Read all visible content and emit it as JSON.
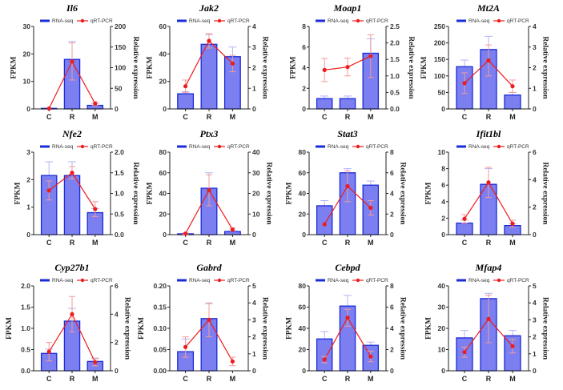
{
  "chart_data": [
    {
      "type": "bar+line",
      "title": "Il6",
      "categories": [
        "C",
        "R",
        "M"
      ],
      "ylabel": "FPKM",
      "y2label": "Relative expression",
      "ylim": [
        0,
        30
      ],
      "yticks": [
        0,
        10,
        20,
        30
      ],
      "y2lim": [
        0,
        200
      ],
      "y2ticks": [
        0,
        50,
        100,
        150,
        200
      ],
      "series": [
        {
          "name": "RNA-seq",
          "values": [
            0.2,
            18,
            1.3
          ],
          "errors": [
            0.1,
            6.5,
            0.7
          ]
        },
        {
          "name": "qRT-PCR",
          "values": [
            1,
            115,
            13
          ],
          "errors": [
            0,
            45,
            5
          ]
        }
      ]
    },
    {
      "type": "bar+line",
      "title": "Jak2",
      "categories": [
        "C",
        "R",
        "M"
      ],
      "ylabel": "FPKM",
      "y2label": "Relative expression",
      "ylim": [
        0,
        60
      ],
      "yticks": [
        0,
        20,
        40,
        60
      ],
      "y2lim": [
        0,
        4
      ],
      "y2ticks": [
        0,
        1,
        2,
        3,
        4
      ],
      "series": [
        {
          "name": "RNA-seq",
          "values": [
            11,
            47,
            38
          ],
          "errors": [
            1.5,
            7,
            7
          ]
        },
        {
          "name": "qRT-PCR",
          "values": [
            1.1,
            3.3,
            2.2
          ],
          "errors": [
            0.3,
            0.35,
            0.4
          ]
        }
      ]
    },
    {
      "type": "bar+line",
      "title": "Moap1",
      "categories": [
        "C",
        "R",
        "M"
      ],
      "ylabel": "FPKM",
      "y2label": "Relative expression",
      "ylim": [
        0,
        8
      ],
      "yticks": [
        0,
        2,
        4,
        6,
        8
      ],
      "y2lim": [
        0,
        2.5
      ],
      "y2ticks": [
        "0.0",
        "0.5",
        "1.0",
        "1.5",
        "2.0",
        "2.5"
      ],
      "series": [
        {
          "name": "RNA-seq",
          "values": [
            1,
            1,
            5.4
          ],
          "errors": [
            0.25,
            0.25,
            1.4
          ]
        },
        {
          "name": "qRT-PCR",
          "values": [
            1.18,
            1.27,
            1.6
          ],
          "errors": [
            0.35,
            0.27,
            0.65
          ]
        }
      ]
    },
    {
      "type": "bar+line",
      "title": "Mt2A",
      "categories": [
        "C",
        "R",
        "M"
      ],
      "ylabel": "FPKM",
      "y2label": "Relative expression",
      "ylim": [
        0,
        250
      ],
      "yticks": [
        0,
        50,
        100,
        150,
        200,
        250
      ],
      "y2lim": [
        0,
        4
      ],
      "y2ticks": [
        0,
        1,
        2,
        3,
        4
      ],
      "series": [
        {
          "name": "RNA-seq",
          "values": [
            128,
            180,
            42
          ],
          "errors": [
            20,
            40,
            8
          ]
        },
        {
          "name": "qRT-PCR",
          "values": [
            1.25,
            2.35,
            1.1
          ],
          "errors": [
            0.5,
            0.75,
            0.3
          ]
        }
      ]
    },
    {
      "type": "bar+line",
      "title": "Nfe2",
      "categories": [
        "C",
        "R",
        "M"
      ],
      "ylabel": "FPKM",
      "y2label": "Relative expression",
      "ylim": [
        0,
        3
      ],
      "yticks": [
        0,
        1,
        2,
        3
      ],
      "y2lim": [
        0,
        2
      ],
      "y2ticks": [
        "0.0",
        "0.5",
        "1.0",
        "1.5",
        "2.0"
      ],
      "series": [
        {
          "name": "RNA-seq",
          "values": [
            2.15,
            2.15,
            0.8
          ],
          "errors": [
            0.5,
            0.5,
            0.15
          ]
        },
        {
          "name": "qRT-PCR",
          "values": [
            1.07,
            1.5,
            0.62
          ],
          "errors": [
            0.23,
            0.15,
            0.18
          ]
        }
      ]
    },
    {
      "type": "bar+line",
      "title": "Ptx3",
      "categories": [
        "C",
        "R",
        "M"
      ],
      "ylabel": "FPKM",
      "y2label": "Relative expression",
      "ylim": [
        0,
        80
      ],
      "yticks": [
        0,
        20,
        40,
        60,
        80
      ],
      "y2lim": [
        0,
        40
      ],
      "y2ticks": [
        0,
        10,
        20,
        30,
        40
      ],
      "series": [
        {
          "name": "RNA-seq",
          "values": [
            0.8,
            45,
            3
          ],
          "errors": [
            0.5,
            15,
            1
          ]
        },
        {
          "name": "qRT-PCR",
          "values": [
            0.5,
            21.5,
            2.5
          ],
          "errors": [
            0.3,
            7.5,
            0.8
          ]
        }
      ]
    },
    {
      "type": "bar+line",
      "title": "Stat3",
      "categories": [
        "C",
        "R",
        "M"
      ],
      "ylabel": "FPKM",
      "y2label": "Relative expression",
      "ylim": [
        0,
        80
      ],
      "yticks": [
        0,
        20,
        40,
        60,
        80
      ],
      "y2lim": [
        0,
        8
      ],
      "y2ticks": [
        0,
        2,
        4,
        6,
        8
      ],
      "series": [
        {
          "name": "RNA-seq",
          "values": [
            28,
            60,
            48
          ],
          "errors": [
            5,
            4,
            4
          ]
        },
        {
          "name": "qRT-PCR",
          "values": [
            1,
            4.7,
            2.6
          ],
          "errors": [
            0,
            1.5,
            0.7
          ]
        }
      ]
    },
    {
      "type": "bar+line",
      "title": "Ifit1bl",
      "categories": [
        "C",
        "R",
        "M"
      ],
      "ylabel": "FPKM",
      "y2label": "Relative expression",
      "ylim": [
        0,
        10
      ],
      "yticks": [
        0,
        2,
        4,
        6,
        8,
        10
      ],
      "y2lim": [
        0,
        6
      ],
      "y2ticks": [
        0,
        2,
        4,
        6
      ],
      "series": [
        {
          "name": "RNA-seq",
          "values": [
            1.4,
            6.1,
            1.1
          ],
          "errors": [
            0.35,
            1.9,
            0.2
          ]
        },
        {
          "name": "qRT-PCR",
          "values": [
            1.15,
            3.8,
            0.8
          ],
          "errors": [
            0.3,
            1.1,
            0.25
          ]
        }
      ]
    },
    {
      "type": "bar+line",
      "title": "Cyp27b1",
      "categories": [
        "C",
        "R",
        "M"
      ],
      "ylabel": "FPKM",
      "y2label": "Relative expression",
      "ylim": [
        0,
        2
      ],
      "yticks": [
        "0.0",
        "0.5",
        "1.0",
        "1.5",
        "2.0"
      ],
      "y2lim": [
        0,
        6
      ],
      "y2ticks": [
        0,
        2,
        4,
        6
      ],
      "series": [
        {
          "name": "RNA-seq",
          "values": [
            0.41,
            1.17,
            0.22
          ],
          "errors": [
            0.1,
            0.3,
            0.08
          ]
        },
        {
          "name": "qRT-PCR",
          "values": [
            1.35,
            4.0,
            0.6
          ],
          "errors": [
            0.65,
            1.25,
            0.25
          ]
        }
      ]
    },
    {
      "type": "bar+line",
      "title": "Gabrd",
      "categories": [
        "C",
        "R",
        "M"
      ],
      "ylabel": "FPKM",
      "y2label": "Relative expression",
      "ylim": [
        0,
        0.2
      ],
      "yticks": [
        "0.00",
        "0.05",
        "0.10",
        "0.15",
        "0.20"
      ],
      "y2lim": [
        0,
        5
      ],
      "y2ticks": [
        0,
        1,
        2,
        3,
        4,
        5
      ],
      "series": [
        {
          "name": "RNA-seq",
          "values": [
            0.045,
            0.123,
            0
          ],
          "errors": [
            0.03,
            0.035,
            0
          ]
        },
        {
          "name": "qRT-PCR",
          "values": [
            1.4,
            3.0,
            0.55
          ],
          "errors": [
            0.6,
            1.0,
            0.25
          ]
        }
      ]
    },
    {
      "type": "bar+line",
      "title": "Cebpd",
      "categories": [
        "C",
        "R",
        "M"
      ],
      "ylabel": "FPKM",
      "y2label": "Relative expression",
      "ylim": [
        0,
        80
      ],
      "yticks": [
        0,
        20,
        40,
        60,
        80
      ],
      "y2lim": [
        0,
        8
      ],
      "y2ticks": [
        0,
        2,
        4,
        6,
        8
      ],
      "series": [
        {
          "name": "RNA-seq",
          "values": [
            30,
            61,
            24
          ],
          "errors": [
            7,
            10,
            3
          ]
        },
        {
          "name": "qRT-PCR",
          "values": [
            1.05,
            5.0,
            1.35
          ],
          "errors": [
            0.3,
            0.8,
            0.5
          ]
        }
      ]
    },
    {
      "type": "bar+line",
      "title": "Mfap4",
      "categories": [
        "C",
        "R",
        "M"
      ],
      "ylabel": "FPKM",
      "y2label": "Relative expression",
      "ylim": [
        0,
        40
      ],
      "yticks": [
        0,
        10,
        20,
        30,
        40
      ],
      "y2lim": [
        0,
        5
      ],
      "y2ticks": [
        0,
        1,
        2,
        3,
        4,
        5
      ],
      "series": [
        {
          "name": "RNA-seq",
          "values": [
            15.5,
            34,
            16.5
          ],
          "errors": [
            3.5,
            2.5,
            2.5
          ]
        },
        {
          "name": "qRT-PCR",
          "values": [
            1.1,
            3.05,
            1.45
          ],
          "errors": [
            0.3,
            1.4,
            0.4
          ]
        }
      ]
    }
  ],
  "colors": {
    "bar_fill": "#7b7ff0",
    "bar_edge": "#1a2bd8",
    "line": "#ee1c1c",
    "error_bar_light": "#b0b4f5",
    "error_line_light": "#f59a9a"
  },
  "legend_placement": "top"
}
